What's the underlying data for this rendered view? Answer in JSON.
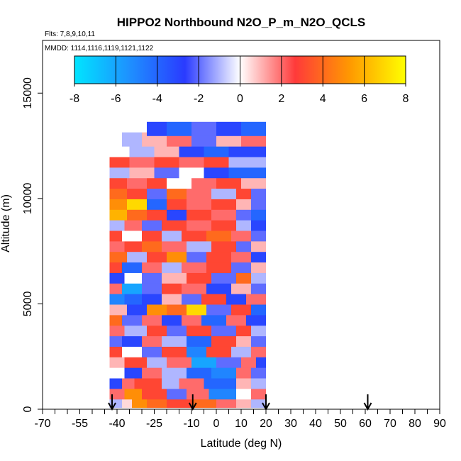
{
  "chart_data": {
    "type": "heatmap",
    "title": "HIPPO2 Northbound N2O_P_m_N2O_QCLS",
    "flights_note": "Flts: 7,8,9,10,11",
    "dates_note": "MMDD: 1114,1116,1119,1121,1122",
    "xlabel": "Latitude (deg N)",
    "ylabel": "Altitude (m)",
    "xlim": [
      -70,
      90
    ],
    "ylim": [
      0,
      17500
    ],
    "x_ticks": [
      -70,
      -55,
      -40,
      -25,
      -10,
      0,
      10,
      20,
      30,
      40,
      50,
      60,
      70,
      80,
      90
    ],
    "x_tick_labels": [
      "-70",
      "-55",
      "-40",
      "-25",
      "-10",
      "0",
      "10",
      "20",
      "30",
      "40",
      "50",
      "60",
      "70",
      "80",
      "90"
    ],
    "y_ticks": [
      0,
      5000,
      10000,
      15000
    ],
    "y_tick_labels": [
      "0",
      "5000",
      "10000",
      "15000"
    ],
    "colorbar": {
      "min": -8,
      "max": 8,
      "ticks": [
        -8,
        -6,
        -4,
        -2,
        0,
        2,
        4,
        6,
        8
      ],
      "tick_labels": [
        "-8",
        "-6",
        "-4",
        "-2",
        "0",
        "2",
        "4",
        "6",
        "8"
      ],
      "colors": [
        "#00e5ff",
        "#1e90ff",
        "#2a3bff",
        "#ffffff",
        "#ff3a3a",
        "#ff9a00",
        "#ffff00"
      ]
    },
    "flight_start_latitudes": [
      -42,
      -9.5,
      20,
      61
    ],
    "data_extent": {
      "lat_min": -43,
      "lat_max": 20,
      "alt_min": 100,
      "alt_max": 13500
    },
    "layers": [
      {
        "alt": 400,
        "segments": [
          [
            -43,
            -38,
            -1
          ],
          [
            -38,
            -34,
            0.5
          ],
          [
            -34,
            -28,
            5
          ],
          [
            -28,
            -20,
            4
          ],
          [
            -20,
            -10,
            3
          ],
          [
            -10,
            0,
            4
          ],
          [
            0,
            8,
            2
          ],
          [
            8,
            14,
            1
          ],
          [
            14,
            20,
            -1
          ]
        ]
      },
      {
        "alt": 800,
        "segments": [
          [
            -43,
            -37,
            2
          ],
          [
            -37,
            -30,
            5
          ],
          [
            -30,
            -20,
            3
          ],
          [
            -20,
            -12,
            -2
          ],
          [
            -12,
            -3,
            2
          ],
          [
            -3,
            8,
            -5
          ],
          [
            8,
            14,
            0
          ],
          [
            14,
            20,
            2
          ]
        ]
      },
      {
        "alt": 1300,
        "segments": [
          [
            -43,
            -38,
            -3
          ],
          [
            -38,
            -33,
            2
          ],
          [
            -33,
            -22,
            3
          ],
          [
            -22,
            -15,
            -1
          ],
          [
            -15,
            -5,
            2
          ],
          [
            -5,
            8,
            -4
          ],
          [
            8,
            14,
            1
          ],
          [
            14,
            20,
            -1
          ]
        ]
      },
      {
        "alt": 1800,
        "segments": [
          [
            -43,
            -37,
            0
          ],
          [
            -37,
            -30,
            -3
          ],
          [
            -30,
            -22,
            2
          ],
          [
            -22,
            -12,
            -1
          ],
          [
            -12,
            -2,
            -4
          ],
          [
            -2,
            8,
            -5
          ],
          [
            8,
            14,
            2
          ],
          [
            14,
            20,
            -2
          ]
        ]
      },
      {
        "alt": 2300,
        "segments": [
          [
            -43,
            -37,
            1
          ],
          [
            -37,
            -28,
            3
          ],
          [
            -28,
            -20,
            -1
          ],
          [
            -20,
            -10,
            2
          ],
          [
            -10,
            0,
            -6
          ],
          [
            0,
            10,
            -2
          ],
          [
            10,
            16,
            2
          ],
          [
            16,
            20,
            -3
          ]
        ]
      },
      {
        "alt": 2800,
        "segments": [
          [
            -43,
            -38,
            3
          ],
          [
            -38,
            -30,
            0
          ],
          [
            -30,
            -22,
            -2
          ],
          [
            -22,
            -12,
            3
          ],
          [
            -12,
            -4,
            -5
          ],
          [
            -4,
            6,
            3
          ],
          [
            6,
            14,
            -1
          ],
          [
            14,
            20,
            2
          ]
        ]
      },
      {
        "alt": 3300,
        "segments": [
          [
            -43,
            -38,
            -2
          ],
          [
            -38,
            -30,
            -3
          ],
          [
            -30,
            -22,
            2
          ],
          [
            -22,
            -12,
            -1
          ],
          [
            -12,
            -2,
            -4
          ],
          [
            -2,
            8,
            3
          ],
          [
            8,
            14,
            1
          ],
          [
            14,
            20,
            -2
          ]
        ]
      },
      {
        "alt": 3800,
        "segments": [
          [
            -43,
            -37,
            2
          ],
          [
            -37,
            -28,
            -1
          ],
          [
            -28,
            -20,
            3
          ],
          [
            -20,
            -12,
            -2
          ],
          [
            -12,
            -2,
            3
          ],
          [
            -2,
            8,
            -2
          ],
          [
            8,
            14,
            3
          ],
          [
            14,
            20,
            -1
          ]
        ]
      },
      {
        "alt": 4300,
        "segments": [
          [
            -43,
            -38,
            4
          ],
          [
            -38,
            -30,
            -2
          ],
          [
            -30,
            -22,
            2
          ],
          [
            -22,
            -14,
            -3
          ],
          [
            -14,
            -6,
            2
          ],
          [
            -6,
            4,
            -4
          ],
          [
            4,
            12,
            2
          ],
          [
            12,
            20,
            -3
          ]
        ]
      },
      {
        "alt": 4800,
        "segments": [
          [
            -43,
            -36,
            1
          ],
          [
            -36,
            -28,
            -3
          ],
          [
            -28,
            -20,
            5
          ],
          [
            -20,
            -12,
            4
          ],
          [
            -12,
            -4,
            7
          ],
          [
            -4,
            6,
            -2
          ],
          [
            6,
            14,
            3
          ],
          [
            14,
            20,
            -4
          ]
        ]
      },
      {
        "alt": 5300,
        "segments": [
          [
            -43,
            -37,
            -5
          ],
          [
            -37,
            -30,
            -4
          ],
          [
            -30,
            -22,
            -3
          ],
          [
            -22,
            -14,
            1
          ],
          [
            -14,
            -6,
            -2
          ],
          [
            -6,
            4,
            3
          ],
          [
            4,
            12,
            -3
          ],
          [
            12,
            20,
            2
          ]
        ]
      },
      {
        "alt": 5800,
        "segments": [
          [
            -43,
            -38,
            2
          ],
          [
            -38,
            -30,
            -6
          ],
          [
            -30,
            -22,
            -2
          ],
          [
            -22,
            -14,
            3
          ],
          [
            -14,
            -4,
            2
          ],
          [
            -4,
            6,
            -3
          ],
          [
            6,
            14,
            1
          ],
          [
            14,
            20,
            -2
          ]
        ]
      },
      {
        "alt": 6300,
        "segments": [
          [
            -43,
            -37,
            -3
          ],
          [
            -37,
            -30,
            0
          ],
          [
            -30,
            -22,
            -2
          ],
          [
            -22,
            -12,
            1
          ],
          [
            -12,
            -2,
            3
          ],
          [
            -2,
            8,
            -2
          ],
          [
            8,
            14,
            4
          ],
          [
            14,
            20,
            -1
          ]
        ]
      },
      {
        "alt": 6800,
        "segments": [
          [
            -43,
            -38,
            3
          ],
          [
            -38,
            -30,
            -4
          ],
          [
            -30,
            -22,
            2
          ],
          [
            -22,
            -14,
            -1
          ],
          [
            -14,
            -4,
            2
          ],
          [
            -4,
            6,
            3
          ],
          [
            6,
            14,
            -2
          ],
          [
            14,
            20,
            1
          ]
        ]
      },
      {
        "alt": 7300,
        "segments": [
          [
            -43,
            -36,
            4
          ],
          [
            -36,
            -28,
            -1
          ],
          [
            -28,
            -20,
            3
          ],
          [
            -20,
            -12,
            5
          ],
          [
            -12,
            -4,
            -2
          ],
          [
            -4,
            6,
            3
          ],
          [
            6,
            14,
            2
          ],
          [
            14,
            20,
            -3
          ]
        ]
      },
      {
        "alt": 7800,
        "segments": [
          [
            -43,
            -37,
            2
          ],
          [
            -37,
            -30,
            3
          ],
          [
            -30,
            -22,
            4
          ],
          [
            -22,
            -12,
            2
          ],
          [
            -12,
            -2,
            -1
          ],
          [
            -2,
            8,
            3
          ],
          [
            8,
            14,
            -2
          ],
          [
            14,
            20,
            1
          ]
        ]
      },
      {
        "alt": 8300,
        "segments": [
          [
            -43,
            -38,
            3
          ],
          [
            -38,
            -30,
            0
          ],
          [
            -30,
            -22,
            3
          ],
          [
            -22,
            -14,
            -1
          ],
          [
            -14,
            -4,
            3
          ],
          [
            -4,
            6,
            4
          ],
          [
            6,
            14,
            2
          ],
          [
            14,
            20,
            -2
          ]
        ]
      },
      {
        "alt": 8800,
        "segments": [
          [
            -43,
            -37,
            -1
          ],
          [
            -37,
            -30,
            2
          ],
          [
            -30,
            -22,
            -2
          ],
          [
            -22,
            -12,
            3
          ],
          [
            -12,
            -2,
            2
          ],
          [
            -2,
            8,
            3
          ],
          [
            8,
            14,
            -1
          ],
          [
            14,
            20,
            -3
          ]
        ]
      },
      {
        "alt": 9300,
        "segments": [
          [
            -43,
            -36,
            6
          ],
          [
            -36,
            -28,
            4
          ],
          [
            -28,
            -20,
            3
          ],
          [
            -20,
            -12,
            -3
          ],
          [
            -12,
            -2,
            3
          ],
          [
            -2,
            8,
            2
          ],
          [
            8,
            14,
            -2
          ],
          [
            14,
            20,
            -4
          ]
        ]
      },
      {
        "alt": 9800,
        "segments": [
          [
            -43,
            -36,
            5
          ],
          [
            -36,
            -28,
            7
          ],
          [
            -28,
            -20,
            -4
          ],
          [
            -20,
            -12,
            3
          ],
          [
            -12,
            -2,
            2
          ],
          [
            -2,
            8,
            3
          ],
          [
            8,
            14,
            1
          ],
          [
            14,
            20,
            -2
          ]
        ]
      },
      {
        "alt": 10300,
        "segments": [
          [
            -43,
            -36,
            4
          ],
          [
            -36,
            -28,
            3
          ],
          [
            -28,
            -20,
            -2
          ],
          [
            -20,
            -12,
            4
          ],
          [
            -12,
            -2,
            2
          ],
          [
            -2,
            8,
            -1
          ],
          [
            8,
            14,
            3
          ],
          [
            14,
            20,
            -2
          ]
        ]
      },
      {
        "alt": 10800,
        "segments": [
          [
            -43,
            -36,
            3
          ],
          [
            -36,
            -28,
            2
          ],
          [
            -28,
            -20,
            3
          ],
          [
            -20,
            -10,
            0
          ],
          [
            -10,
            0,
            2
          ],
          [
            0,
            10,
            3
          ],
          [
            10,
            20,
            1
          ]
        ]
      },
      {
        "alt": 11300,
        "segments": [
          [
            -43,
            -35,
            -1
          ],
          [
            -35,
            -25,
            1
          ],
          [
            -25,
            -15,
            -2
          ],
          [
            -15,
            -5,
            0
          ],
          [
            -5,
            5,
            -3
          ],
          [
            5,
            20,
            -4
          ]
        ]
      },
      {
        "alt": 11800,
        "segments": [
          [
            -43,
            -35,
            3
          ],
          [
            -35,
            -25,
            2
          ],
          [
            -25,
            -15,
            3
          ],
          [
            -15,
            -5,
            2
          ],
          [
            -5,
            5,
            3
          ],
          [
            5,
            20,
            -1
          ]
        ]
      },
      {
        "alt": 12300,
        "segments": [
          [
            -43,
            -35,
            0
          ],
          [
            -35,
            -25,
            -1
          ],
          [
            -25,
            -15,
            1
          ],
          [
            -15,
            -5,
            -3
          ],
          [
            -5,
            5,
            -4
          ],
          [
            5,
            20,
            -3
          ]
        ]
      },
      {
        "alt": 12800,
        "segments": [
          [
            -38,
            -30,
            -1
          ],
          [
            -30,
            -20,
            1
          ],
          [
            -20,
            -10,
            2
          ],
          [
            -10,
            0,
            -2
          ],
          [
            0,
            10,
            1
          ],
          [
            10,
            20,
            2
          ]
        ]
      },
      {
        "alt": 13300,
        "segments": [
          [
            -28,
            -20,
            -3
          ],
          [
            -20,
            -10,
            -4
          ],
          [
            -10,
            0,
            -2
          ],
          [
            0,
            10,
            -3
          ],
          [
            10,
            20,
            -4
          ]
        ]
      }
    ]
  }
}
